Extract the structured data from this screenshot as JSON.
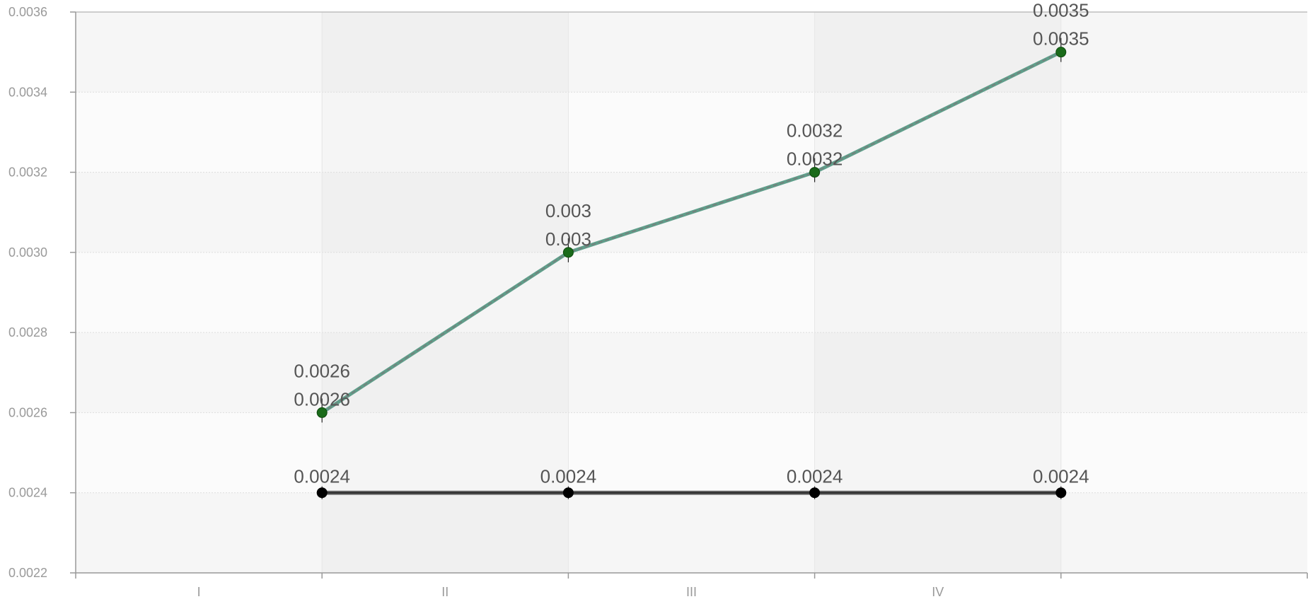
{
  "chart_data": {
    "type": "line",
    "title": "",
    "xlabel": "",
    "ylabel": "",
    "categories": [
      "I",
      "II",
      "III",
      "IV"
    ],
    "ylim": [
      0.0022,
      0.0036
    ],
    "yticks": [
      "0.0022",
      "0.0024",
      "0.0026",
      "0.0028",
      "0.0030",
      "0.0032",
      "0.0034",
      "0.0036"
    ],
    "grid": true,
    "legend": "none",
    "series": [
      {
        "values": [
          0.0026,
          0.003,
          0.0032,
          0.0035
        ],
        "labels": [
          "0.0026",
          "0.003",
          "0.0032",
          "0.0035"
        ],
        "color": "#5f9e8a",
        "marker_color": "#1a6b1a",
        "line_style": "solid"
      },
      {
        "values": [
          0.0026,
          0.003,
          0.0032,
          0.0035
        ],
        "labels": [
          "0.0026",
          "0.003",
          "0.0032",
          "0.0035"
        ],
        "color": "#7a7a7a",
        "marker_color": "#1a6b1a",
        "line_style": "dashed"
      },
      {
        "values": [
          0.0024,
          0.0024,
          0.0024,
          0.0024
        ],
        "labels": [
          "0.0024",
          "0.0024",
          "0.0024",
          "0.0024"
        ],
        "color": "#333333",
        "marker_color": "#000000",
        "line_style": "solid"
      }
    ]
  }
}
